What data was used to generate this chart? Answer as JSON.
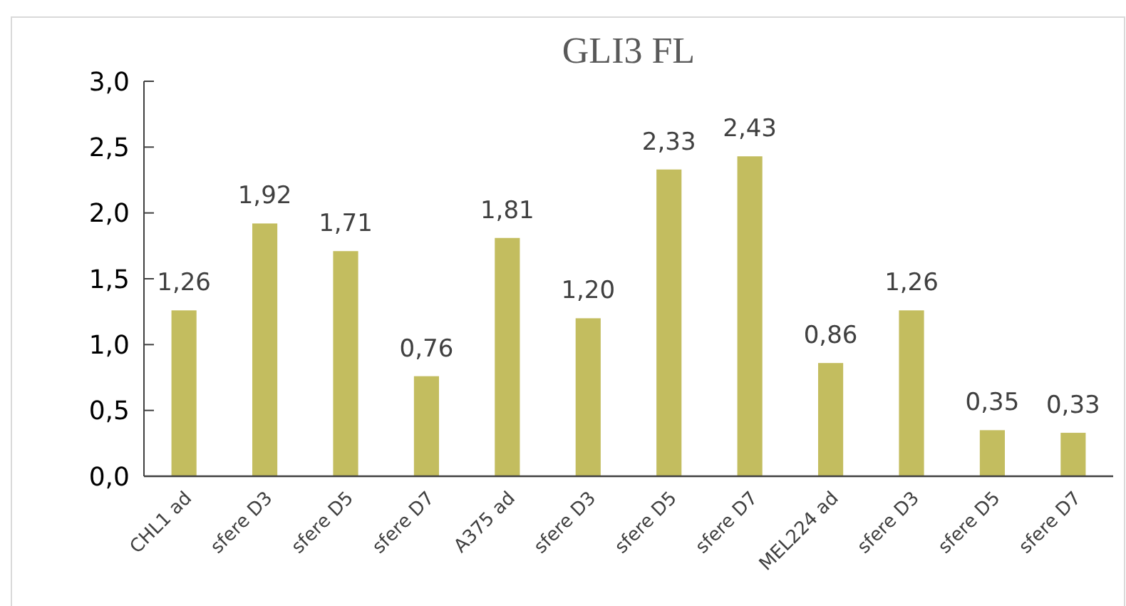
{
  "chart_data": {
    "type": "bar",
    "title": "GLI3 FL",
    "categories": [
      "CHL1 ad",
      "sfere D3",
      "sfere D5",
      "sfere D7",
      "A375 ad",
      "sfere D3",
      "sfere D5",
      "sfere D7",
      "MEL224 ad",
      "sfere D3",
      "sfere D5",
      "sfere D7"
    ],
    "values": [
      1.26,
      1.92,
      1.71,
      0.76,
      1.81,
      1.2,
      2.33,
      2.43,
      0.86,
      1.26,
      0.35,
      0.33
    ],
    "value_labels": [
      "1,26",
      "1,92",
      "1,71",
      "0,76",
      "1,81",
      "1,20",
      "2,33",
      "2,43",
      "0,86",
      "1,26",
      "0,35",
      "0,33"
    ],
    "color": "#c3bd5f",
    "ylim": [
      0,
      3
    ],
    "yticks": [
      {
        "value": 0,
        "label": "0,0"
      },
      {
        "value": 0.5,
        "label": "0,5"
      },
      {
        "value": 1,
        "label": "1,0"
      },
      {
        "value": 1.5,
        "label": "1,5"
      },
      {
        "value": 2,
        "label": "2,0"
      },
      {
        "value": 2.5,
        "label": "2,5"
      },
      {
        "value": 3,
        "label": "3,0"
      }
    ],
    "grid": false
  }
}
